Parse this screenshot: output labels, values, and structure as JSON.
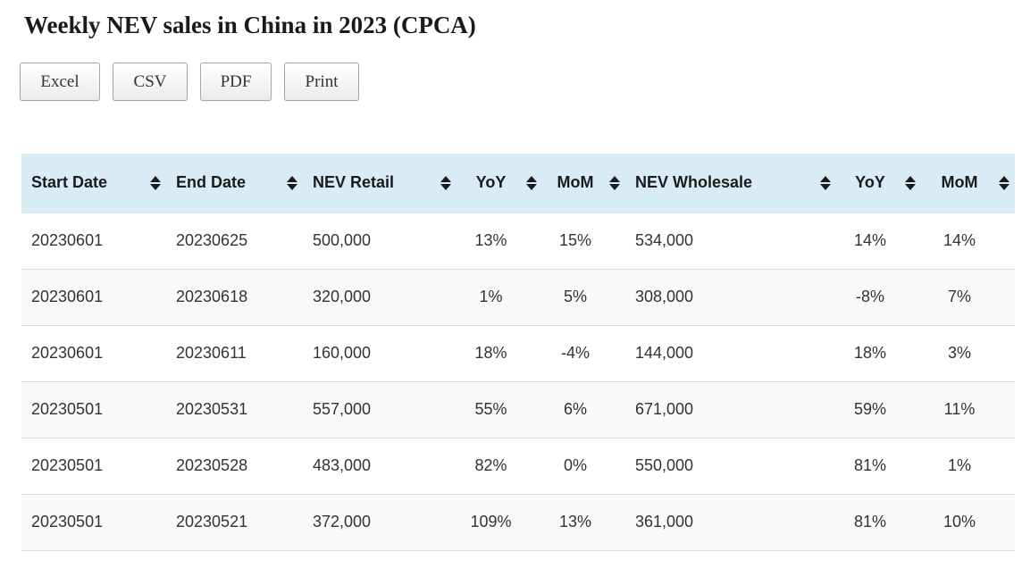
{
  "page": {
    "title": "Weekly NEV sales in China in 2023 (CPCA)"
  },
  "toolbar": {
    "buttons": [
      "Excel",
      "CSV",
      "PDF",
      "Print"
    ]
  },
  "table": {
    "columns": [
      {
        "label": "Start Date",
        "align": "left"
      },
      {
        "label": "End Date",
        "align": "left"
      },
      {
        "label": "NEV Retail",
        "align": "left"
      },
      {
        "label": "YoY",
        "align": "center"
      },
      {
        "label": "MoM",
        "align": "center"
      },
      {
        "label": "NEV Wholesale",
        "align": "left"
      },
      {
        "label": "YoY",
        "align": "center"
      },
      {
        "label": "MoM",
        "align": "center"
      }
    ],
    "rows": [
      [
        "20230601",
        "20230625",
        "500,000",
        "13%",
        "15%",
        "534,000",
        "14%",
        "14%"
      ],
      [
        "20230601",
        "20230618",
        "320,000",
        "1%",
        "5%",
        "308,000",
        "-8%",
        "7%"
      ],
      [
        "20230601",
        "20230611",
        "160,000",
        "18%",
        "-4%",
        "144,000",
        "18%",
        "3%"
      ],
      [
        "20230501",
        "20230531",
        "557,000",
        "55%",
        "6%",
        "671,000",
        "59%",
        "11%"
      ],
      [
        "20230501",
        "20230528",
        "483,000",
        "82%",
        "0%",
        "550,000",
        "81%",
        "1%"
      ],
      [
        "20230501",
        "20230521",
        "372,000",
        "109%",
        "13%",
        "361,000",
        "81%",
        "10%"
      ]
    ]
  },
  "icons": {
    "sort": "sort-icon"
  },
  "colors": {
    "header_bg": "#d9ecf6",
    "alt_row_bg": "#f9f9f9",
    "border": "#dddddd",
    "text": "#333333"
  }
}
